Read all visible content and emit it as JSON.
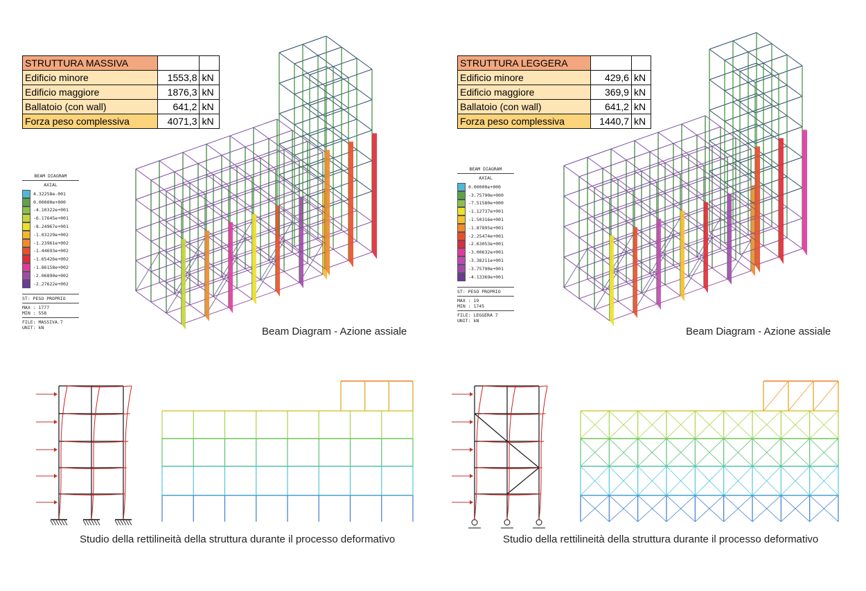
{
  "left": {
    "table": {
      "title": "STRUTTURA MASSIVA",
      "rows": [
        {
          "label": "Edificio minore",
          "value": "1553,8",
          "unit": "kN"
        },
        {
          "label": "Edificio maggiore",
          "value": "1876,3",
          "unit": "kN"
        },
        {
          "label": "Ballatoio (con wall)",
          "value": "641,2",
          "unit": "kN"
        },
        {
          "label": "Forza peso complessiva",
          "value": "4071,3",
          "unit": "kN"
        }
      ]
    },
    "legend": {
      "title": "BEAM DIAGRAM",
      "subtitle": "AXIAL",
      "entries": [
        {
          "value": "4.32258e-001",
          "color": "#4fb8d8"
        },
        {
          "value": "0.00000e+000",
          "color": "#5ea34a"
        },
        {
          "value": "-4.10322e+001",
          "color": "#8cc04a"
        },
        {
          "value": "-6.17645e+001",
          "color": "#c4d63a"
        },
        {
          "value": "-8.24967e+001",
          "color": "#ece128"
        },
        {
          "value": "-1.03229e+002",
          "color": "#f5b82a"
        },
        {
          "value": "-1.23961e+002",
          "color": "#f08a2a"
        },
        {
          "value": "-1.44693e+002",
          "color": "#e8502c"
        },
        {
          "value": "-1.65426e+002",
          "color": "#e02c3a"
        },
        {
          "value": "-1.86158e+002",
          "color": "#e03aa0"
        },
        {
          "value": "-2.06890e+002",
          "color": "#a04aa8"
        },
        {
          "value": "-2.27622e+002",
          "color": "#6a3a98"
        }
      ],
      "st": "ST: PESO PROPRIO",
      "max": "MAX : 1777",
      "min": "MIN : 558",
      "file": "FILE: MASSIVA.7",
      "unit": "UNIT: kN"
    },
    "caption_top": "Beam Diagram - Azione assiale",
    "caption_bottom": "Studio della rettilineità della struttura durante il processo deformativo"
  },
  "right": {
    "table": {
      "title": "STRUTTURA LEGGERA",
      "rows": [
        {
          "label": "Edificio minore",
          "value": "429,6",
          "unit": "kN"
        },
        {
          "label": "Edificio maggiore",
          "value": "369,9",
          "unit": "kN"
        },
        {
          "label": "Ballatoio (con wall)",
          "value": "641,2",
          "unit": "kN"
        },
        {
          "label": "Forza peso complessiva",
          "value": "1440,7",
          "unit": "kN"
        }
      ]
    },
    "legend": {
      "title": "BEAM DIAGRAM",
      "subtitle": "AXIAL",
      "entries": [
        {
          "value": "0.00000e+000",
          "color": "#4fb8d8"
        },
        {
          "value": "-3.75790e+000",
          "color": "#5ea34a"
        },
        {
          "value": "-7.51580e+000",
          "color": "#8cc04a"
        },
        {
          "value": "-1.12737e+001",
          "color": "#ece128"
        },
        {
          "value": "-1.50316e+001",
          "color": "#f5c02a"
        },
        {
          "value": "-1.87895e+001",
          "color": "#f08a2a"
        },
        {
          "value": "-2.25474e+001",
          "color": "#e8502c"
        },
        {
          "value": "-2.63053e+001",
          "color": "#e02c3a"
        },
        {
          "value": "-3.00632e+001",
          "color": "#e03aa0"
        },
        {
          "value": "-3.38211e+001",
          "color": "#c04ab0"
        },
        {
          "value": "-3.75790e+001",
          "color": "#a04aa8"
        },
        {
          "value": "-4.13369e+001",
          "color": "#6a3a98"
        }
      ],
      "st": "ST: PESO PROPRIO",
      "max": "MAX : 19",
      "min": "MIN : 1745",
      "file": "FILE: LEGGERA 7",
      "unit": "UNIT: kN"
    },
    "caption_top": "Beam Diagram - Azione assiale",
    "caption_bottom": "Studio della rettilineità della struttura durante il processo deformativo"
  }
}
